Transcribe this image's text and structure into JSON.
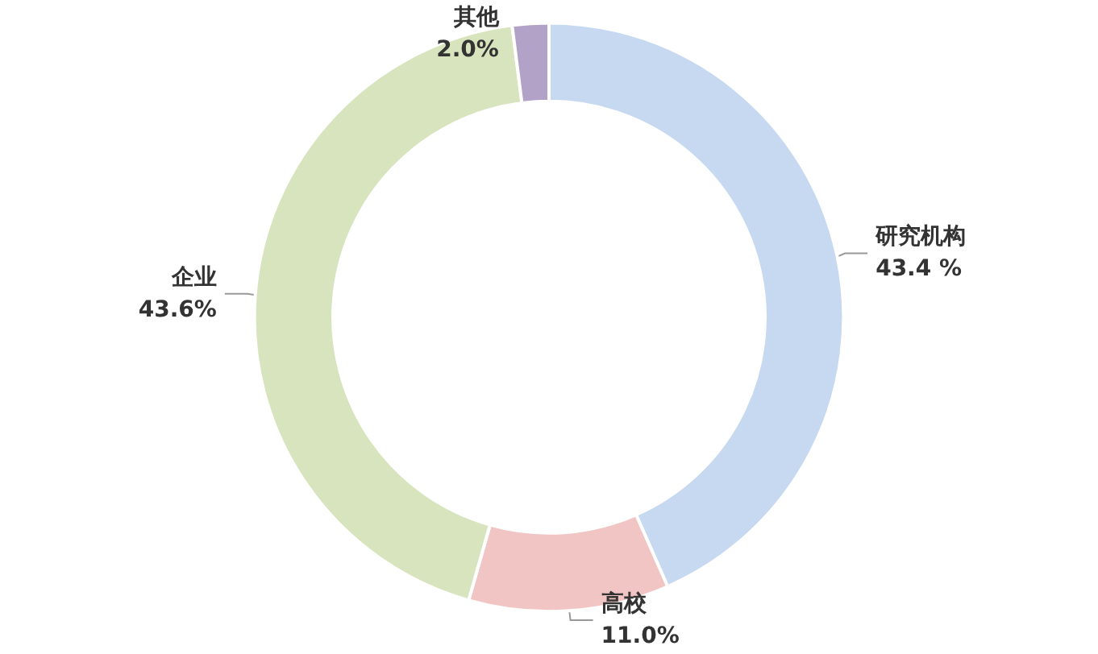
{
  "chart_data": {
    "type": "donut",
    "categories": [
      "研究机构",
      "高校",
      "企业",
      "其他"
    ],
    "values": [
      43.4,
      11.0,
      43.6,
      2.0
    ],
    "value_labels": [
      "43.4 %",
      "11.0%",
      "43.6%",
      "2.0%"
    ],
    "colors": [
      "#c6d9f1",
      "#f2c5c5",
      "#d7e4bd",
      "#b3a2c7"
    ]
  }
}
